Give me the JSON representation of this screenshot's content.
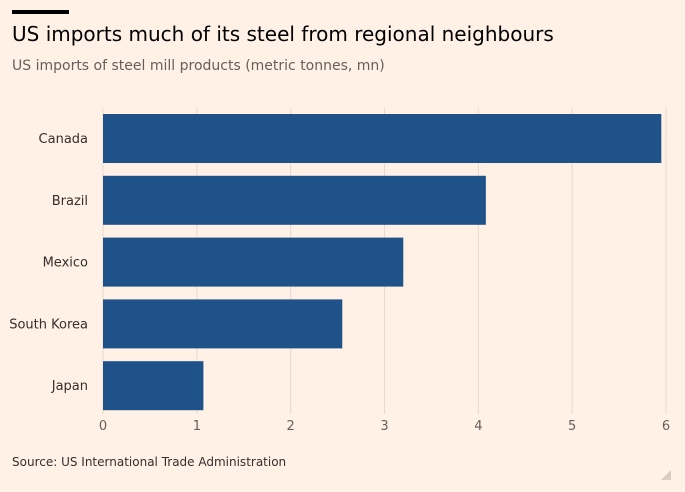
{
  "header": {
    "title": "US imports much of its steel from regional neighbours",
    "subtitle": "US imports of steel mill products (metric tonnes, mn)"
  },
  "footer": {
    "source": "Source: US International Trade Administration"
  },
  "colors": {
    "background": "#FFF1E5",
    "bar": "#1F5288",
    "grid": "#E6D9CE",
    "text": "#33302E",
    "subtext": "#66605C"
  },
  "chart_data": {
    "type": "bar",
    "orientation": "horizontal",
    "categories": [
      "Canada",
      "Brazil",
      "Mexico",
      "South Korea",
      "Japan"
    ],
    "values": [
      5.95,
      4.08,
      3.2,
      2.55,
      1.07
    ],
    "xlim": [
      0,
      6
    ],
    "xticks": [
      "0",
      "1",
      "2",
      "3",
      "4",
      "5",
      "6"
    ],
    "grid": true
  }
}
